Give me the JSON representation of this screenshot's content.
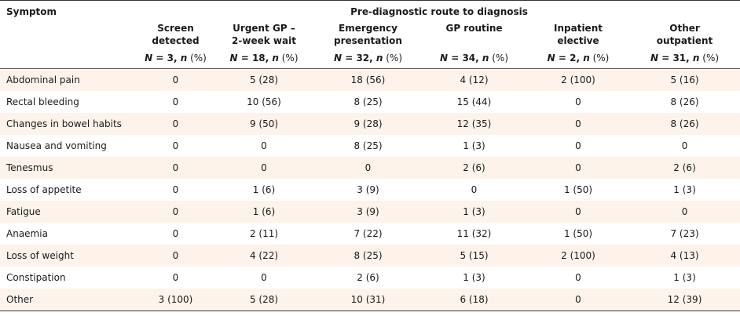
{
  "header": {
    "symptom": "Symptom",
    "route": "Pre-diagnostic route to diagnosis",
    "columns": [
      {
        "name_line1": "Screen",
        "name_line2": "detected",
        "n_label": "N",
        "n_value": "3",
        "n_sep": ", ",
        "n_small": "n",
        "pct": " (%)"
      },
      {
        "name_line1": "Urgent GP –",
        "name_line2": "2-week wait",
        "n_label": "N",
        "n_value": "18",
        "n_sep": ", ",
        "n_small": "n",
        "pct": " (%)"
      },
      {
        "name_line1": "Emergency",
        "name_line2": "presentation",
        "n_label": "N",
        "n_value": "32",
        "n_sep": ", ",
        "n_small": "n",
        "pct": " (%)"
      },
      {
        "name_line1": "GP routine",
        "name_line2": "",
        "n_label": "N",
        "n_value": "34",
        "n_sep": ", ",
        "n_small": "n",
        "pct": " (%)"
      },
      {
        "name_line1": "Inpatient",
        "name_line2": "elective",
        "n_label": "N",
        "n_value": "2",
        "n_sep": ", ",
        "n_small": "n",
        "pct": " (%)"
      },
      {
        "name_line1": "Other",
        "name_line2": "outpatient",
        "n_label": "N",
        "n_value": "31",
        "n_sep": ", ",
        "n_small": "n",
        "pct": " (%)"
      }
    ]
  },
  "rows": [
    {
      "symptom": "Abdominal pain",
      "values": [
        "0",
        "5 (28)",
        "18 (56)",
        "4 (12)",
        "2 (100)",
        "5 (16)"
      ]
    },
    {
      "symptom": "Rectal bleeding",
      "values": [
        "0",
        "10 (56)",
        "8 (25)",
        "15 (44)",
        "0",
        "8 (26)"
      ]
    },
    {
      "symptom": "Changes in bowel habits",
      "values": [
        "0",
        "9 (50)",
        "9 (28)",
        "12 (35)",
        "0",
        "8 (26)"
      ]
    },
    {
      "symptom": "Nausea and vomiting",
      "values": [
        "0",
        "0",
        "8 (25)",
        "1 (3)",
        "0",
        "0"
      ]
    },
    {
      "symptom": "Tenesmus",
      "values": [
        "0",
        "0",
        "0",
        "2 (6)",
        "0",
        "2 (6)"
      ]
    },
    {
      "symptom": "Loss of appetite",
      "values": [
        "0",
        "1 (6)",
        "3 (9)",
        "0",
        "1 (50)",
        "1 (3)"
      ]
    },
    {
      "symptom": "Fatigue",
      "values": [
        "0",
        "1 (6)",
        "3 (9)",
        "1 (3)",
        "0",
        "0"
      ]
    },
    {
      "symptom": "Anaemia",
      "values": [
        "0",
        "2 (11)",
        "7 (22)",
        "11 (32)",
        "1 (50)",
        "7 (23)"
      ]
    },
    {
      "symptom": "Loss of weight",
      "values": [
        "0",
        "4 (22)",
        "8 (25)",
        "5 (15)",
        "2 (100)",
        "4 (13)"
      ]
    },
    {
      "symptom": "Constipation",
      "values": [
        "0",
        "0",
        "2 (6)",
        "1 (3)",
        "0",
        "1 (3)"
      ]
    },
    {
      "symptom": "Other",
      "values": [
        "3 (100)",
        "5 (28)",
        "10 (31)",
        "6 (18)",
        "0",
        "12 (39)"
      ]
    }
  ],
  "colors": {
    "row_shade": "#fdf3ea",
    "rule": "#333333"
  }
}
